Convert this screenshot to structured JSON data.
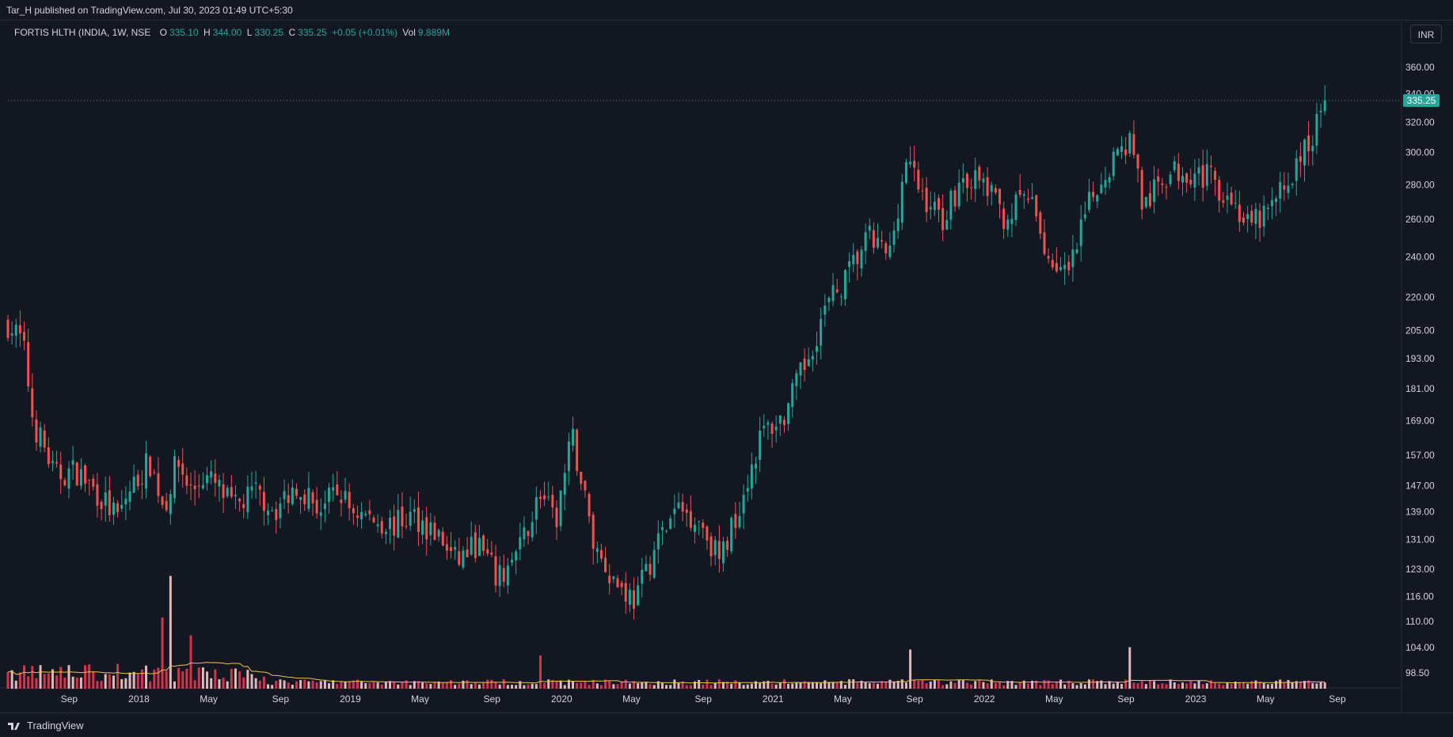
{
  "header": {
    "published": "Tar_H published on TradingView.com, Jul 30, 2023 01:49 UTC+5:30"
  },
  "legend": {
    "symbol": "FORTIS HLTH (INDIA, 1W, NSE",
    "open_label": "O",
    "open": "335.10",
    "high_label": "H",
    "high": "344.00",
    "low_label": "L",
    "low": "330.25",
    "close_label": "C",
    "close": "335.25",
    "change": "+0.05 (+0.01%)",
    "vol_label": "Vol",
    "vol": "9.889M"
  },
  "currency": "INR",
  "last_price": "335.25",
  "footer": {
    "logo_text": "TradingView"
  },
  "colors": {
    "up": "#26a69a",
    "down": "#ef5350",
    "bg": "#131722",
    "ma": "#f0c24b"
  },
  "chart_data": {
    "type": "candlestick",
    "scale": "log",
    "price_ticks": [
      360,
      340,
      320,
      300,
      280,
      260,
      240,
      220,
      205,
      193,
      181,
      169,
      157,
      147,
      139,
      131,
      123,
      116,
      110,
      104,
      98.5
    ],
    "price_tick_labels": [
      "360.00",
      "340.00",
      "320.00",
      "300.00",
      "280.00",
      "260.00",
      "240.00",
      "220.00",
      "205.00",
      "193.00",
      "181.00",
      "169.00",
      "157.00",
      "147.00",
      "139.00",
      "131.00",
      "123.00",
      "116.00",
      "110.00",
      "104.00",
      "98.50"
    ],
    "time_labels": [
      "Sep",
      "2018",
      "May",
      "Sep",
      "2019",
      "May",
      "Sep",
      "2020",
      "May",
      "Sep",
      "2021",
      "May",
      "Sep",
      "2022",
      "May",
      "Sep",
      "2023",
      "May",
      "Sep"
    ],
    "time_label_years": [
      2017.67,
      2018.0,
      2018.33,
      2018.67,
      2019.0,
      2019.33,
      2019.67,
      2020.0,
      2020.33,
      2020.67,
      2021.0,
      2021.33,
      2021.67,
      2022.0,
      2022.33,
      2022.67,
      2023.0,
      2023.33,
      2023.67
    ],
    "range": {
      "start_year": 2017.38,
      "end_year": 2023.73
    },
    "close_path": [
      [
        2017.38,
        208
      ],
      [
        2017.45,
        200
      ],
      [
        2017.5,
        168
      ],
      [
        2017.55,
        160
      ],
      [
        2017.6,
        150
      ],
      [
        2017.7,
        152
      ],
      [
        2017.8,
        145
      ],
      [
        2017.9,
        137
      ],
      [
        2017.95,
        145
      ],
      [
        2018.05,
        155
      ],
      [
        2018.12,
        140
      ],
      [
        2018.18,
        155
      ],
      [
        2018.25,
        145
      ],
      [
        2018.3,
        150
      ],
      [
        2018.35,
        148
      ],
      [
        2018.45,
        140
      ],
      [
        2018.55,
        145
      ],
      [
        2018.65,
        140
      ],
      [
        2018.75,
        148
      ],
      [
        2018.85,
        140
      ],
      [
        2018.95,
        145
      ],
      [
        2019.0,
        140
      ],
      [
        2019.1,
        137
      ],
      [
        2019.2,
        135
      ],
      [
        2019.3,
        138
      ],
      [
        2019.4,
        133
      ],
      [
        2019.5,
        125
      ],
      [
        2019.6,
        130
      ],
      [
        2019.7,
        120
      ],
      [
        2019.8,
        128
      ],
      [
        2019.9,
        145
      ],
      [
        2019.97,
        135
      ],
      [
        2020.05,
        163
      ],
      [
        2020.15,
        130
      ],
      [
        2020.25,
        120
      ],
      [
        2020.35,
        115
      ],
      [
        2020.45,
        130
      ],
      [
        2020.55,
        140
      ],
      [
        2020.65,
        137
      ],
      [
        2020.75,
        125
      ],
      [
        2020.85,
        143
      ],
      [
        2020.95,
        165
      ],
      [
        2021.05,
        170
      ],
      [
        2021.15,
        190
      ],
      [
        2021.25,
        215
      ],
      [
        2021.35,
        230
      ],
      [
        2021.45,
        250
      ],
      [
        2021.55,
        240
      ],
      [
        2021.63,
        295
      ],
      [
        2021.7,
        275
      ],
      [
        2021.8,
        260
      ],
      [
        2021.9,
        285
      ],
      [
        2022.0,
        280
      ],
      [
        2022.1,
        260
      ],
      [
        2022.2,
        275
      ],
      [
        2022.3,
        240
      ],
      [
        2022.4,
        230
      ],
      [
        2022.5,
        270
      ],
      [
        2022.6,
        295
      ],
      [
        2022.7,
        310
      ],
      [
        2022.75,
        265
      ],
      [
        2022.85,
        285
      ],
      [
        2022.95,
        290
      ],
      [
        2023.05,
        285
      ],
      [
        2023.15,
        275
      ],
      [
        2023.25,
        255
      ],
      [
        2023.35,
        265
      ],
      [
        2023.45,
        285
      ],
      [
        2023.55,
        310
      ],
      [
        2023.62,
        335.25
      ]
    ],
    "volume_ma": "present",
    "volume_spikes": [
      {
        "year": 2018.15,
        "rel": 0.95
      },
      {
        "year": 2018.12,
        "rel": 0.6
      },
      {
        "year": 2018.25,
        "rel": 0.45
      },
      {
        "year": 2022.68,
        "rel": 0.35
      },
      {
        "year": 2021.64,
        "rel": 0.33
      },
      {
        "year": 2019.9,
        "rel": 0.28
      }
    ]
  }
}
